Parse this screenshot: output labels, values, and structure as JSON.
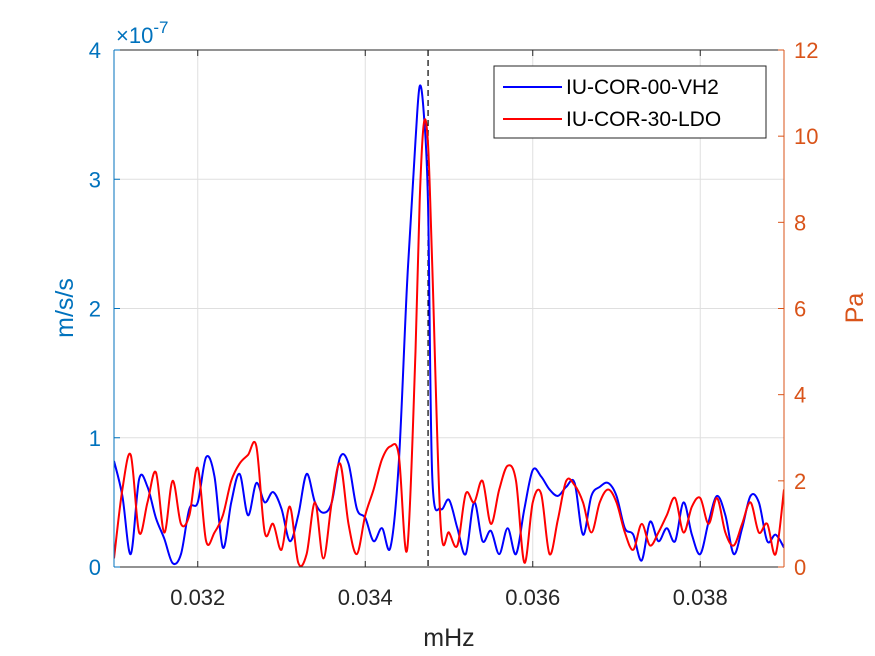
{
  "chart_data": {
    "type": "line",
    "title": "",
    "xlabel": "mHz",
    "ylabel_left": "m/s/s",
    "ylabel_right": "Pa",
    "xlim": [
      0.031,
      0.039
    ],
    "ylim_left": [
      0,
      4
    ],
    "ylim_right": [
      0,
      12
    ],
    "left_exponent_label": "×10",
    "left_exponent_power": "-7",
    "x_ticks": [
      0.032,
      0.034,
      0.036,
      0.038
    ],
    "x_tick_labels": [
      "0.032",
      "0.034",
      "0.036",
      "0.038"
    ],
    "y_left_ticks": [
      0,
      1,
      2,
      3,
      4
    ],
    "y_left_tick_labels": [
      "0",
      "1",
      "2",
      "3",
      "4"
    ],
    "y_right_ticks": [
      0,
      2,
      4,
      6,
      8,
      10,
      12
    ],
    "y_right_tick_labels": [
      "0",
      "2",
      "4",
      "6",
      "8",
      "10",
      "12"
    ],
    "grid": true,
    "legend_position": "top-right",
    "vertical_marker_x": 0.03475,
    "colors": {
      "left_axis": "#0072BD",
      "right_axis": "#D95319",
      "series1": "#0000FF",
      "series2": "#FF0000"
    },
    "series": [
      {
        "name": "IU-COR-00-VH2",
        "axis": "left",
        "color": "#0000FF",
        "x": [
          0.031,
          0.0311,
          0.0312,
          0.0313,
          0.0314,
          0.0315,
          0.0316,
          0.0317,
          0.0318,
          0.0319,
          0.032,
          0.0321,
          0.0322,
          0.0323,
          0.0324,
          0.0325,
          0.0326,
          0.0327,
          0.0328,
          0.0329,
          0.033,
          0.0331,
          0.0332,
          0.0333,
          0.0334,
          0.0335,
          0.0336,
          0.0337,
          0.0338,
          0.0339,
          0.034,
          0.0341,
          0.0342,
          0.0343,
          0.0344,
          0.0345,
          0.0346,
          0.03465,
          0.0347,
          0.03475,
          0.0348,
          0.0349,
          0.035,
          0.0351,
          0.0352,
          0.0353,
          0.0354,
          0.0355,
          0.0356,
          0.0357,
          0.0358,
          0.0359,
          0.036,
          0.0361,
          0.0362,
          0.0363,
          0.0364,
          0.0365,
          0.0366,
          0.0367,
          0.0368,
          0.0369,
          0.037,
          0.0371,
          0.0372,
          0.0373,
          0.0374,
          0.0375,
          0.0376,
          0.0377,
          0.0378,
          0.0379,
          0.038,
          0.0381,
          0.0382,
          0.0383,
          0.0384,
          0.0385,
          0.0386,
          0.0387,
          0.0388,
          0.0389,
          0.039
        ],
        "values": [
          0.82,
          0.55,
          0.1,
          0.68,
          0.62,
          0.38,
          0.22,
          0.03,
          0.1,
          0.45,
          0.5,
          0.85,
          0.7,
          0.15,
          0.5,
          0.72,
          0.4,
          0.65,
          0.5,
          0.58,
          0.45,
          0.2,
          0.4,
          0.72,
          0.5,
          0.42,
          0.5,
          0.85,
          0.8,
          0.45,
          0.38,
          0.2,
          0.3,
          0.15,
          0.8,
          2.2,
          3.3,
          3.72,
          3.5,
          2.8,
          0.7,
          0.45,
          0.52,
          0.3,
          0.1,
          0.5,
          0.2,
          0.28,
          0.1,
          0.3,
          0.1,
          0.45,
          0.75,
          0.7,
          0.6,
          0.55,
          0.62,
          0.65,
          0.25,
          0.55,
          0.62,
          0.65,
          0.55,
          0.3,
          0.25,
          0.05,
          0.35,
          0.2,
          0.3,
          0.2,
          0.5,
          0.25,
          0.1,
          0.35,
          0.55,
          0.4,
          0.1,
          0.3,
          0.55,
          0.5,
          0.2,
          0.25,
          0.15
        ]
      },
      {
        "name": "IU-COR-30-LDO",
        "axis": "right",
        "color": "#FF0000",
        "x": [
          0.031,
          0.0311,
          0.0312,
          0.0313,
          0.0314,
          0.0315,
          0.0316,
          0.0317,
          0.0318,
          0.0319,
          0.032,
          0.0321,
          0.0322,
          0.0323,
          0.0324,
          0.0325,
          0.0326,
          0.0327,
          0.0328,
          0.0329,
          0.033,
          0.0331,
          0.0332,
          0.0333,
          0.0334,
          0.0335,
          0.0336,
          0.0337,
          0.0338,
          0.0339,
          0.034,
          0.0341,
          0.0342,
          0.0343,
          0.0344,
          0.0345,
          0.0346,
          0.03465,
          0.0347,
          0.03475,
          0.0348,
          0.0349,
          0.035,
          0.0351,
          0.0352,
          0.0353,
          0.0354,
          0.0355,
          0.0356,
          0.0357,
          0.0358,
          0.0359,
          0.036,
          0.0361,
          0.0362,
          0.0363,
          0.0364,
          0.0365,
          0.0366,
          0.0367,
          0.0368,
          0.0369,
          0.037,
          0.0371,
          0.0372,
          0.0373,
          0.0374,
          0.0375,
          0.0376,
          0.0377,
          0.0378,
          0.0379,
          0.038,
          0.0381,
          0.0382,
          0.0383,
          0.0384,
          0.0385,
          0.0386,
          0.0387,
          0.0388,
          0.0389,
          0.039
        ],
        "values": [
          0.2,
          1.8,
          2.6,
          0.8,
          1.5,
          2.2,
          0.8,
          2.0,
          1.0,
          1.2,
          2.3,
          0.6,
          0.8,
          1.2,
          2.0,
          2.4,
          2.6,
          2.8,
          0.8,
          1.0,
          0.4,
          1.4,
          0.1,
          0.3,
          1.5,
          0.2,
          1.5,
          2.4,
          1.0,
          0.3,
          1.2,
          1.8,
          2.5,
          2.8,
          2.6,
          0.4,
          5.0,
          8.5,
          10.3,
          9.8,
          7.0,
          1.0,
          0.8,
          0.5,
          1.7,
          1.5,
          2.0,
          1.0,
          1.8,
          2.35,
          2.0,
          0.1,
          1.5,
          1.7,
          0.3,
          1.1,
          2.0,
          1.9,
          1.5,
          0.8,
          1.5,
          1.8,
          1.5,
          0.8,
          0.4,
          1.0,
          0.5,
          0.8,
          1.2,
          1.6,
          0.8,
          1.4,
          1.6,
          1.0,
          1.6,
          0.8,
          0.5,
          1.0,
          1.5,
          0.8,
          1.0,
          0.3,
          1.8
        ]
      }
    ]
  }
}
